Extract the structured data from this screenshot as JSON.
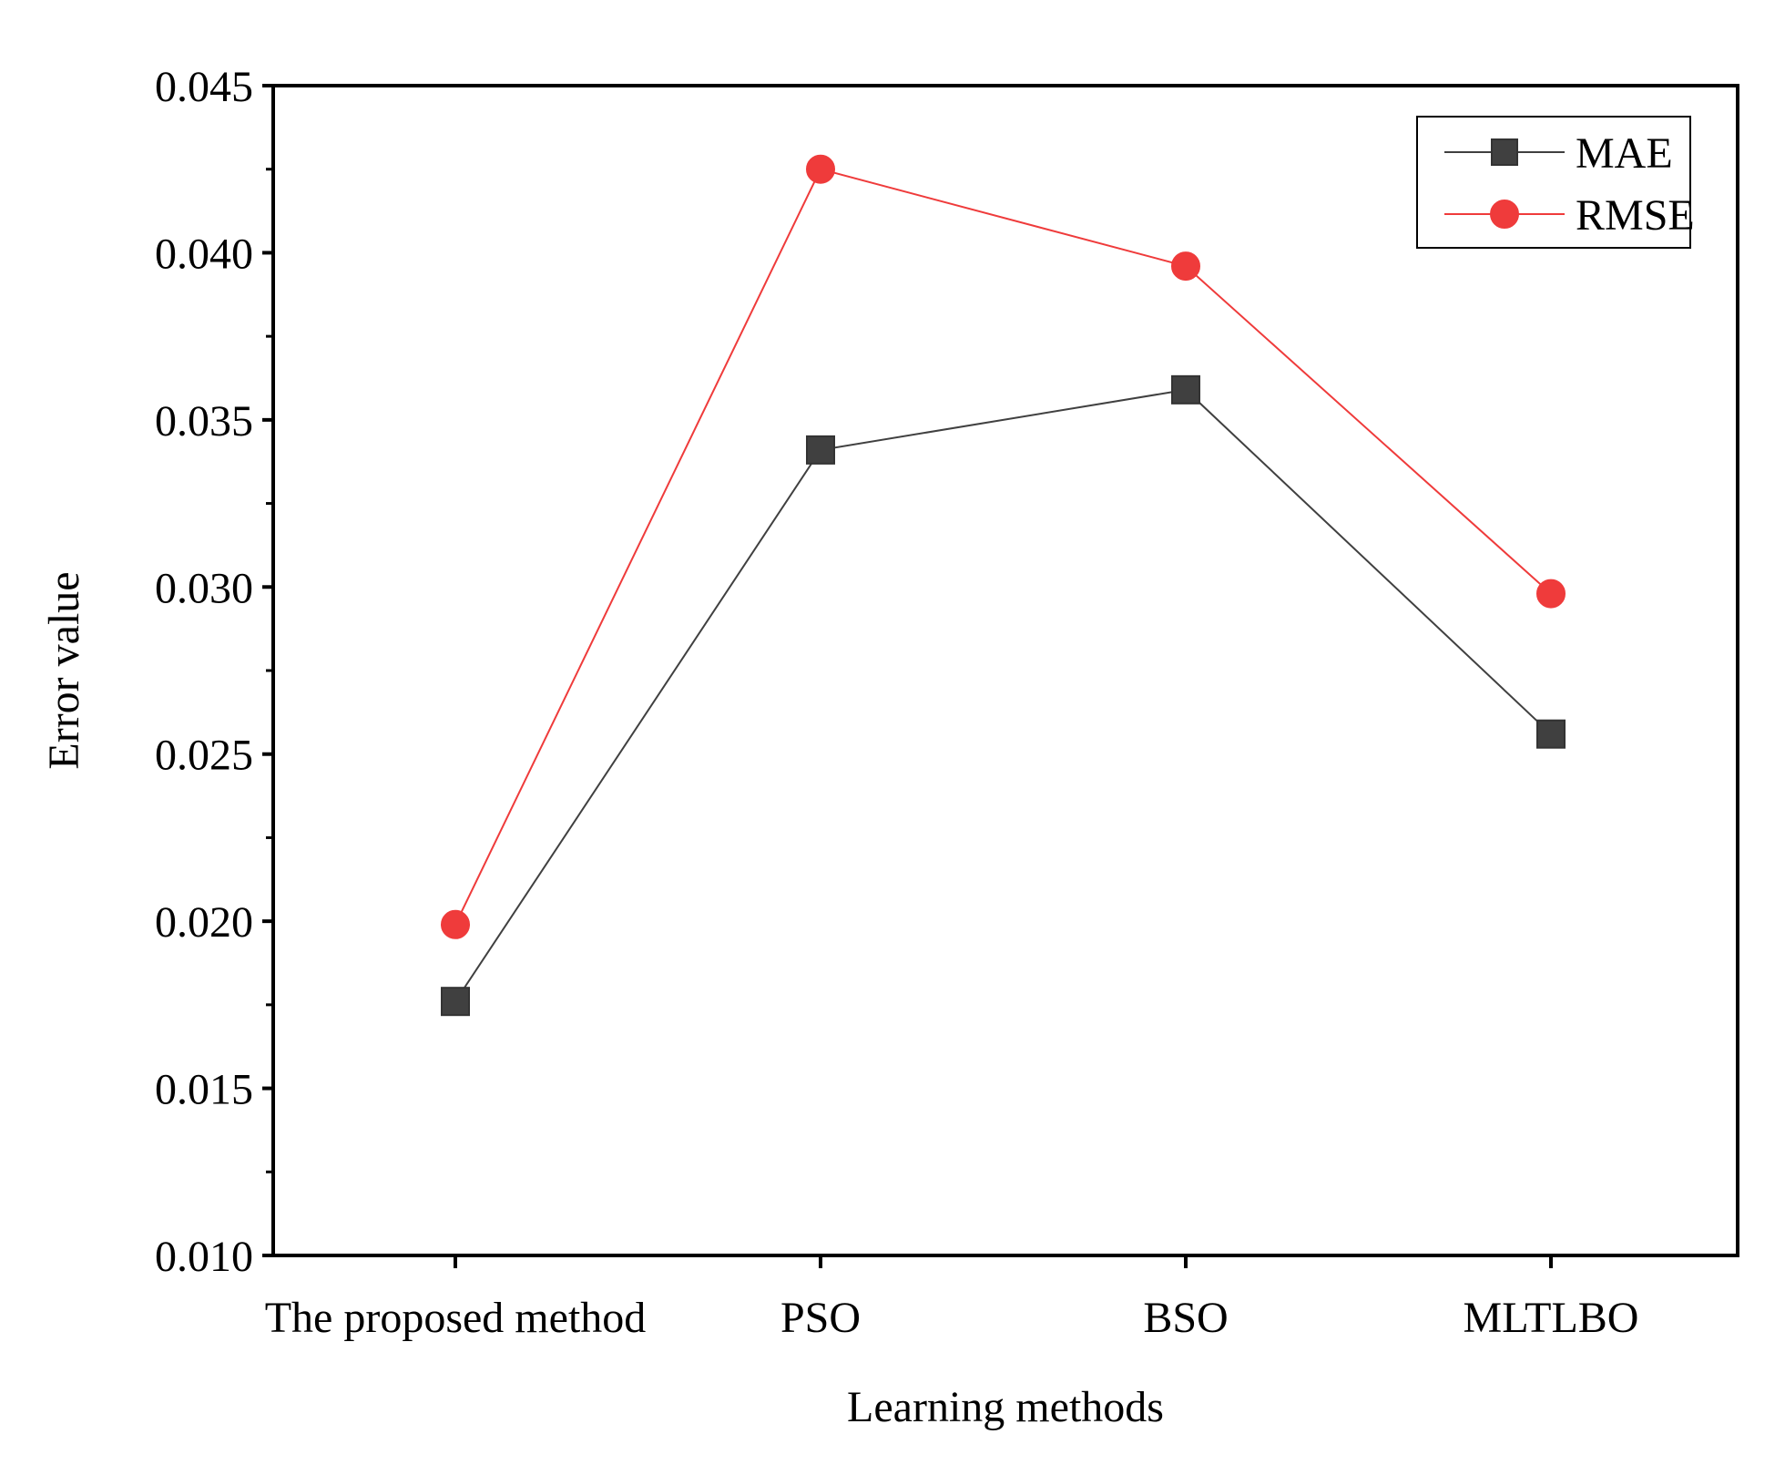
{
  "chart_data": {
    "type": "line",
    "title": "",
    "xlabel": "Learning methods",
    "ylabel": "Error value",
    "categories": [
      "The proposed method",
      "PSO",
      "BSO",
      "MLTLBO"
    ],
    "ylim": [
      0.01,
      0.045
    ],
    "yticks": [
      "0.010",
      "0.015",
      "0.020",
      "0.025",
      "0.030",
      "0.035",
      "0.040",
      "0.045"
    ],
    "ytick_values": [
      0.01,
      0.015,
      0.02,
      0.025,
      0.03,
      0.035,
      0.04,
      0.045
    ],
    "legend_position": "top-right",
    "grid": false,
    "series": [
      {
        "name": "MAE",
        "values": [
          0.0176,
          0.0341,
          0.0359,
          0.0256
        ],
        "color": "#404040",
        "marker": "square"
      },
      {
        "name": "RMSE",
        "values": [
          0.0199,
          0.0425,
          0.0396,
          0.0298
        ],
        "color": "#ef3b3b",
        "marker": "circle"
      }
    ]
  }
}
